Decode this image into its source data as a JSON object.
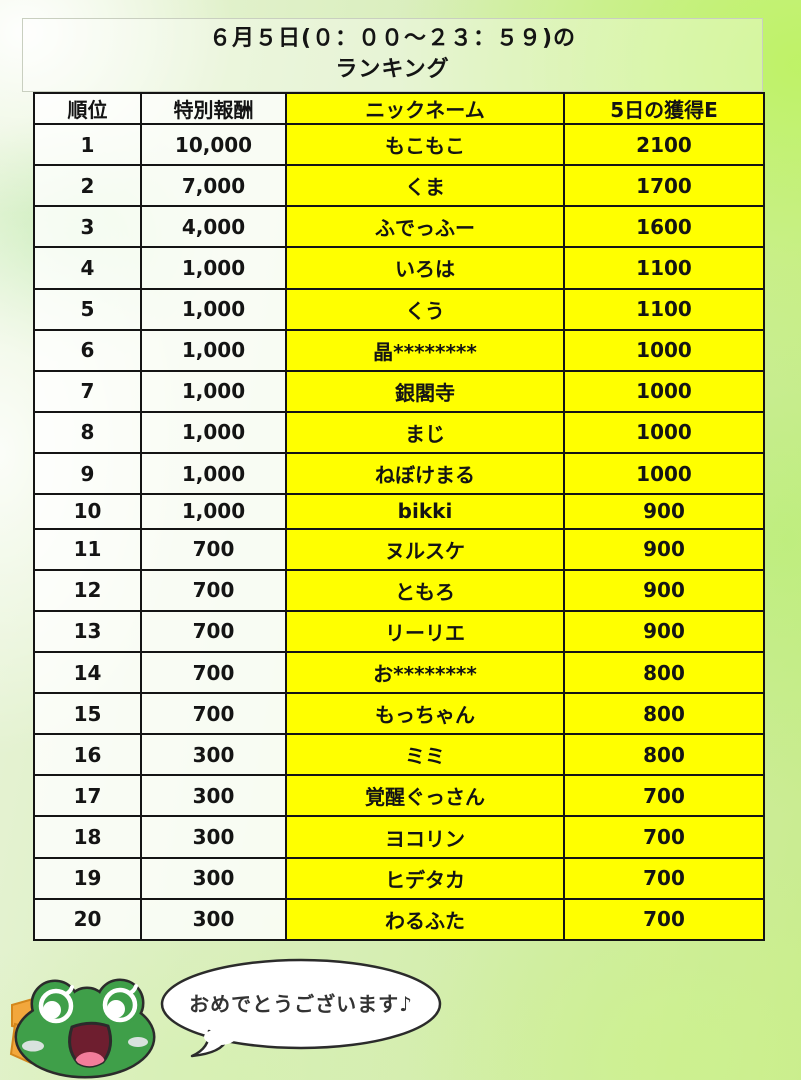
{
  "title": {
    "line1": "６月５日(０：００～２３：５９)の",
    "line2": "ランキング"
  },
  "table": {
    "columns": [
      "順位",
      "特別報酬",
      "ニックネーム",
      "5日の獲得E"
    ],
    "rows": [
      {
        "rank": "1",
        "reward": "10,000",
        "nickname": "もこもこ",
        "points": "2100"
      },
      {
        "rank": "2",
        "reward": "7,000",
        "nickname": "くま",
        "points": "1700"
      },
      {
        "rank": "3",
        "reward": "4,000",
        "nickname": "ふでっふー",
        "points": "1600"
      },
      {
        "rank": "4",
        "reward": "1,000",
        "nickname": "いろは",
        "points": "1100"
      },
      {
        "rank": "5",
        "reward": "1,000",
        "nickname": "くう",
        "points": "1100"
      },
      {
        "rank": "6",
        "reward": "1,000",
        "nickname": "晶********",
        "points": "1000"
      },
      {
        "rank": "7",
        "reward": "1,000",
        "nickname": "銀閣寺",
        "points": "1000"
      },
      {
        "rank": "8",
        "reward": "1,000",
        "nickname": "まじ",
        "points": "1000"
      },
      {
        "rank": "9",
        "reward": "1,000",
        "nickname": "ねぼけまる",
        "points": "1000"
      },
      {
        "rank": "10",
        "reward": "1,000",
        "nickname": "bikki",
        "points": "900"
      },
      {
        "rank": "11",
        "reward": "700",
        "nickname": "ヌルスケ",
        "points": "900"
      },
      {
        "rank": "12",
        "reward": "700",
        "nickname": "ともろ",
        "points": "900"
      },
      {
        "rank": "13",
        "reward": "700",
        "nickname": "リーリエ",
        "points": "900"
      },
      {
        "rank": "14",
        "reward": "700",
        "nickname": "お********",
        "points": "800"
      },
      {
        "rank": "15",
        "reward": "700",
        "nickname": "もっちゃん",
        "points": "800"
      },
      {
        "rank": "16",
        "reward": "300",
        "nickname": "ミミ",
        "points": "800"
      },
      {
        "rank": "17",
        "reward": "300",
        "nickname": "覚醒ぐっさん",
        "points": "700"
      },
      {
        "rank": "18",
        "reward": "300",
        "nickname": "ヨコリン",
        "points": "700"
      },
      {
        "rank": "19",
        "reward": "300",
        "nickname": "ヒデタカ",
        "points": "700"
      },
      {
        "rank": "20",
        "reward": "300",
        "nickname": "わるふた",
        "points": "700"
      }
    ]
  },
  "mascot": {
    "icon": "frog-mascot-icon",
    "speech": "おめでとうございます♪"
  },
  "colors": {
    "highlight_yellow": "#ffff00",
    "border_black": "#141414",
    "background_green": "#d7edb4",
    "background_yellow_green": "#c9ec8e",
    "frog_green": "#3f9f49",
    "bow_orange": "#f2a73c",
    "mouth_dark": "#6e1e2f",
    "tongue_pink": "#f27d9b",
    "bubble_white": "#ffffff"
  }
}
